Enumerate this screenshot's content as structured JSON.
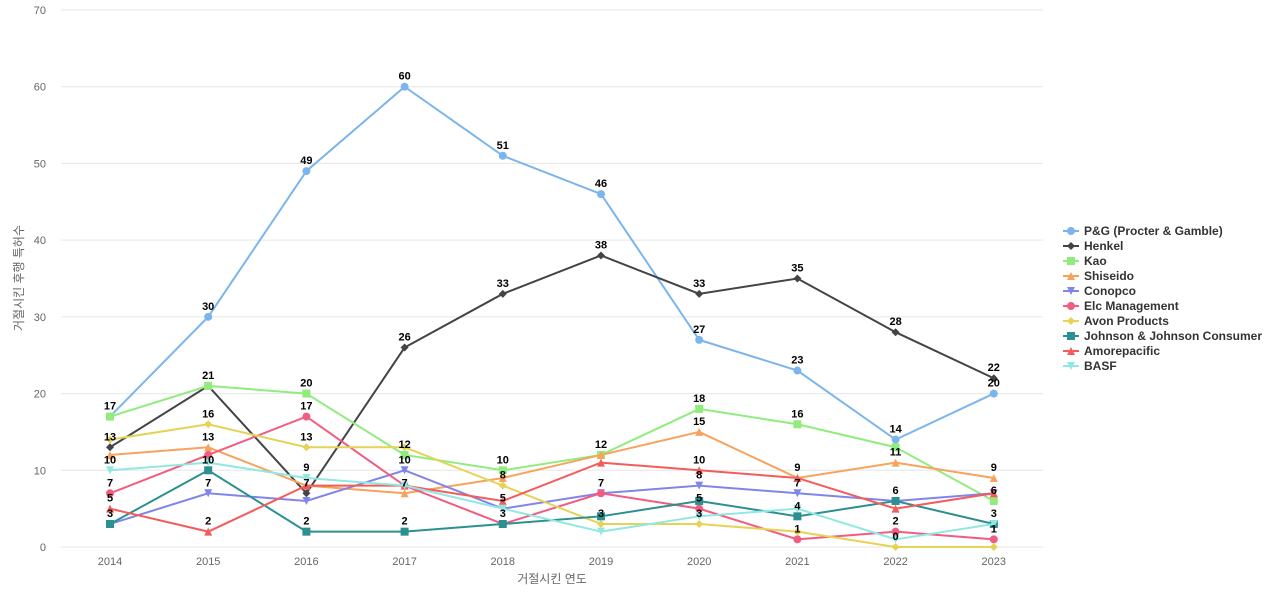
{
  "chart_data": {
    "type": "line",
    "title": "",
    "xlabel": "거절시킨 연도",
    "ylabel": "거절시킨 후행 특허수",
    "x": [
      "2014",
      "2015",
      "2016",
      "2017",
      "2018",
      "2019",
      "2020",
      "2021",
      "2022",
      "2023"
    ],
    "ylim": [
      0,
      70
    ],
    "yticks": [
      0,
      10,
      20,
      30,
      40,
      50,
      60,
      70
    ],
    "grid": true,
    "legend_position": "right",
    "series": [
      {
        "name": "P&G (Procter & Gamble)",
        "color": "#7cb5ec",
        "marker": "circle",
        "values": [
          17,
          30,
          49,
          60,
          51,
          46,
          27,
          23,
          14,
          20
        ]
      },
      {
        "name": "Henkel",
        "color": "#434348",
        "marker": "diamond",
        "values": [
          13,
          21,
          7,
          26,
          33,
          38,
          33,
          35,
          28,
          22
        ]
      },
      {
        "name": "Kao",
        "color": "#90ed7d",
        "marker": "square",
        "values": [
          17,
          21,
          20,
          12,
          10,
          12,
          18,
          16,
          13,
          6
        ]
      },
      {
        "name": "Shiseido",
        "color": "#f7a35c",
        "marker": "triangle",
        "values": [
          12,
          13,
          8,
          7,
          9,
          12,
          15,
          9,
          11,
          9
        ]
      },
      {
        "name": "Conopco",
        "color": "#8085e9",
        "marker": "triangle-down",
        "values": [
          3,
          7,
          6,
          10,
          5,
          7,
          8,
          7,
          6,
          7
        ]
      },
      {
        "name": "Elc Management",
        "color": "#f15c80",
        "marker": "circle",
        "values": [
          7,
          12,
          17,
          8,
          3,
          7,
          5,
          1,
          2,
          1
        ]
      },
      {
        "name": "Avon Products",
        "color": "#e4d354",
        "marker": "diamond",
        "values": [
          14,
          16,
          13,
          13,
          8,
          3,
          3,
          2,
          0,
          0
        ]
      },
      {
        "name": "Johnson & Johnson Consumer",
        "color": "#2b908f",
        "marker": "square",
        "values": [
          3,
          10,
          2,
          2,
          3,
          4,
          6,
          4,
          6,
          3
        ]
      },
      {
        "name": "Amorepacific",
        "color": "#f45b5b",
        "marker": "triangle",
        "values": [
          5,
          2,
          8,
          8,
          6,
          11,
          10,
          9,
          5,
          7
        ]
      },
      {
        "name": "BASF",
        "color": "#91e8e1",
        "marker": "triangle-down",
        "values": [
          10,
          11,
          9,
          8,
          5,
          2,
          4,
          5,
          1,
          3
        ]
      }
    ],
    "data_labels": [
      {
        "text": "17",
        "x": "2014",
        "y": 17
      },
      {
        "text": "13",
        "x": "2014",
        "y": 13
      },
      {
        "text": "10",
        "x": "2014",
        "y": 10
      },
      {
        "text": "7",
        "x": "2014",
        "y": 7
      },
      {
        "text": "5",
        "x": "2014",
        "y": 5
      },
      {
        "text": "3",
        "x": "2014",
        "y": 3
      },
      {
        "text": "30",
        "x": "2015",
        "y": 30
      },
      {
        "text": "21",
        "x": "2015",
        "y": 21
      },
      {
        "text": "16",
        "x": "2015",
        "y": 16
      },
      {
        "text": "13",
        "x": "2015",
        "y": 13
      },
      {
        "text": "10",
        "x": "2015",
        "y": 10
      },
      {
        "text": "7",
        "x": "2015",
        "y": 7
      },
      {
        "text": "2",
        "x": "2015",
        "y": 2
      },
      {
        "text": "49",
        "x": "2016",
        "y": 49
      },
      {
        "text": "20",
        "x": "2016",
        "y": 20
      },
      {
        "text": "17",
        "x": "2016",
        "y": 17
      },
      {
        "text": "13",
        "x": "2016",
        "y": 13
      },
      {
        "text": "9",
        "x": "2016",
        "y": 9
      },
      {
        "text": "7",
        "x": "2016",
        "y": 7
      },
      {
        "text": "2",
        "x": "2016",
        "y": 2
      },
      {
        "text": "60",
        "x": "2017",
        "y": 60
      },
      {
        "text": "26",
        "x": "2017",
        "y": 26
      },
      {
        "text": "12",
        "x": "2017",
        "y": 12
      },
      {
        "text": "10",
        "x": "2017",
        "y": 10
      },
      {
        "text": "7",
        "x": "2017",
        "y": 7
      },
      {
        "text": "2",
        "x": "2017",
        "y": 2
      },
      {
        "text": "51",
        "x": "2018",
        "y": 51
      },
      {
        "text": "33",
        "x": "2018",
        "y": 33
      },
      {
        "text": "10",
        "x": "2018",
        "y": 10
      },
      {
        "text": "8",
        "x": "2018",
        "y": 8
      },
      {
        "text": "5",
        "x": "2018",
        "y": 5
      },
      {
        "text": "3",
        "x": "2018",
        "y": 3
      },
      {
        "text": "46",
        "x": "2019",
        "y": 46
      },
      {
        "text": "38",
        "x": "2019",
        "y": 38
      },
      {
        "text": "12",
        "x": "2019",
        "y": 12
      },
      {
        "text": "7",
        "x": "2019",
        "y": 7
      },
      {
        "text": "3",
        "x": "2019",
        "y": 3
      },
      {
        "text": "33",
        "x": "2020",
        "y": 33
      },
      {
        "text": "27",
        "x": "2020",
        "y": 27
      },
      {
        "text": "18",
        "x": "2020",
        "y": 18
      },
      {
        "text": "15",
        "x": "2020",
        "y": 15
      },
      {
        "text": "10",
        "x": "2020",
        "y": 10
      },
      {
        "text": "8",
        "x": "2020",
        "y": 8
      },
      {
        "text": "5",
        "x": "2020",
        "y": 5
      },
      {
        "text": "3",
        "x": "2020",
        "y": 3
      },
      {
        "text": "35",
        "x": "2021",
        "y": 35
      },
      {
        "text": "23",
        "x": "2021",
        "y": 23
      },
      {
        "text": "16",
        "x": "2021",
        "y": 16
      },
      {
        "text": "9",
        "x": "2021",
        "y": 9
      },
      {
        "text": "7",
        "x": "2021",
        "y": 7
      },
      {
        "text": "4",
        "x": "2021",
        "y": 4
      },
      {
        "text": "1",
        "x": "2021",
        "y": 1
      },
      {
        "text": "28",
        "x": "2022",
        "y": 28
      },
      {
        "text": "14",
        "x": "2022",
        "y": 14
      },
      {
        "text": "11",
        "x": "2022",
        "y": 11
      },
      {
        "text": "6",
        "x": "2022",
        "y": 6
      },
      {
        "text": "2",
        "x": "2022",
        "y": 2
      },
      {
        "text": "0",
        "x": "2022",
        "y": 0
      },
      {
        "text": "22",
        "x": "2023",
        "y": 22
      },
      {
        "text": "20",
        "x": "2023",
        "y": 20
      },
      {
        "text": "9",
        "x": "2023",
        "y": 9
      },
      {
        "text": "6",
        "x": "2023",
        "y": 6
      },
      {
        "text": "3",
        "x": "2023",
        "y": 3
      },
      {
        "text": "1",
        "x": "2023",
        "y": 1
      }
    ]
  }
}
